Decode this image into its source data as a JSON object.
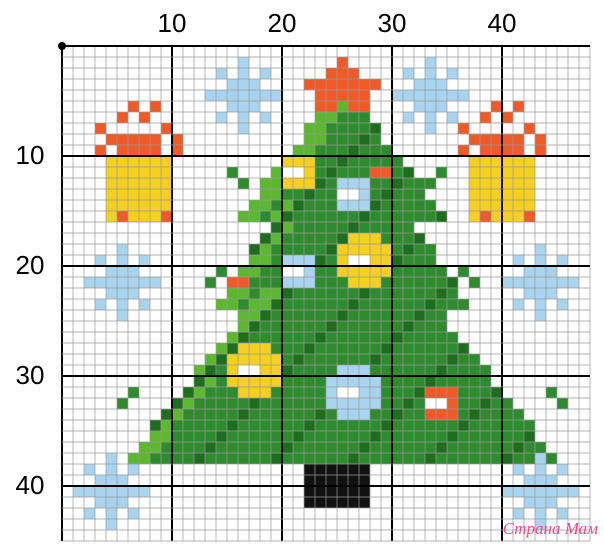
{
  "columns": {
    "labels": [
      "10",
      "20",
      "30",
      "40"
    ]
  },
  "rows": {
    "labels": [
      "10",
      "20",
      "30",
      "40"
    ]
  },
  "watermark": "Страна Мам"
}
